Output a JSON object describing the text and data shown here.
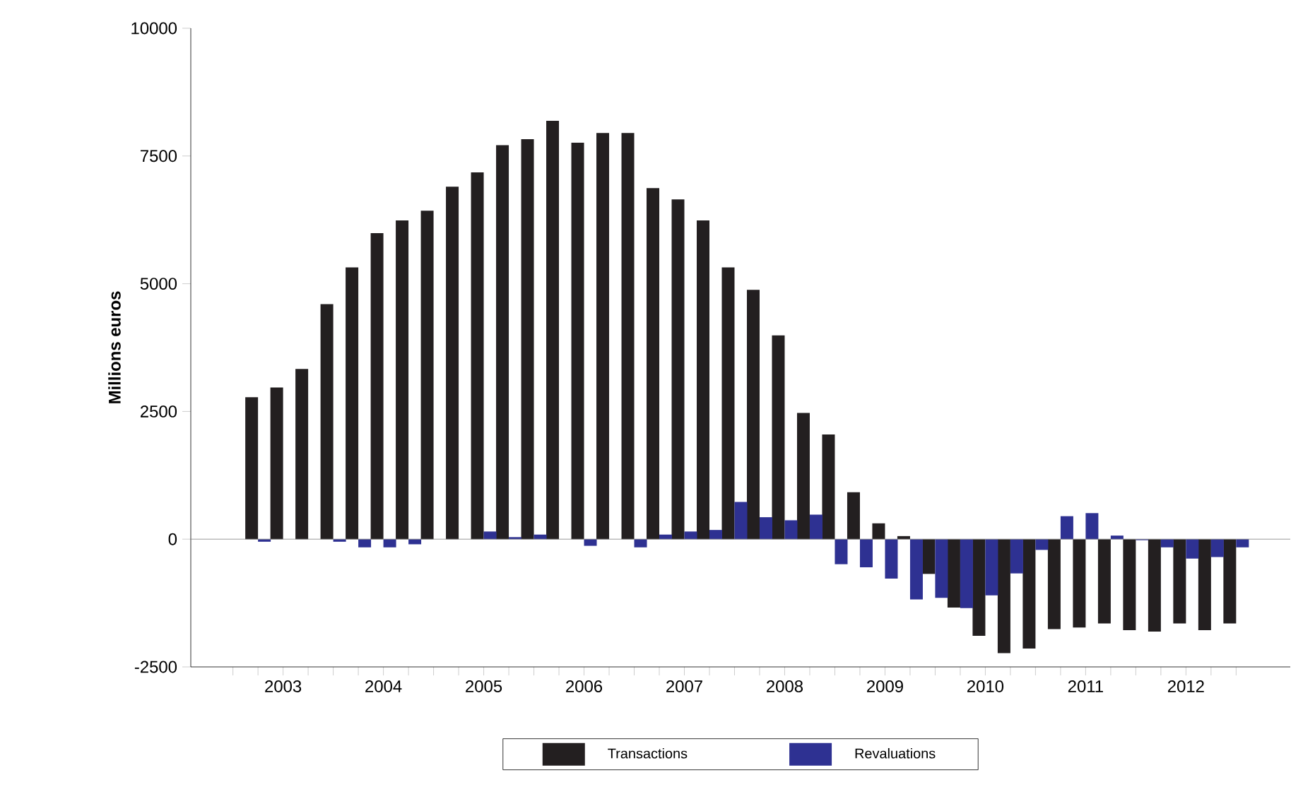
{
  "chart_data": {
    "type": "bar",
    "ylabel": "Millions euros",
    "x": [
      2003.25,
      2003.5,
      2003.75,
      2004,
      2004.25,
      2004.5,
      2004.75,
      2005,
      2005.25,
      2005.5,
      2005.75,
      2006,
      2006.25,
      2006.5,
      2006.75,
      2007,
      2007.25,
      2007.5,
      2007.75,
      2008,
      2008.25,
      2008.5,
      2008.75,
      2009,
      2009.25,
      2009.5,
      2009.75,
      2010,
      2010.25,
      2010.5,
      2010.75,
      2011,
      2011.25,
      2011.5,
      2011.75,
      2012,
      2012.25,
      2012.5,
      2012.75,
      2013
    ],
    "series": [
      {
        "name": "Transactions",
        "color": "#231f20",
        "values": [
          2780,
          2970,
          3330,
          4600,
          5320,
          5990,
          6240,
          6430,
          6900,
          7180,
          7710,
          7830,
          8190,
          7760,
          7950,
          7950,
          6870,
          6650,
          6240,
          5320,
          4880,
          3990,
          2470,
          2050,
          920,
          310,
          60,
          -680,
          -1340,
          -1890,
          -2230,
          -2140,
          -1760,
          -1730,
          -1650,
          -1780,
          -1810,
          -1650,
          -1780,
          -1650
        ]
      },
      {
        "name": "Revaluations",
        "color": "#2e3192",
        "values": [
          -50,
          null,
          null,
          -50,
          -160,
          -160,
          -100,
          null,
          0,
          150,
          40,
          90,
          null,
          -130,
          null,
          -160,
          90,
          150,
          180,
          730,
          430,
          370,
          480,
          -490,
          -550,
          -770,
          -1180,
          -1150,
          -1350,
          -1100,
          -670,
          -210,
          450,
          510,
          70,
          -20,
          -160,
          -380,
          -350,
          -160
        ]
      }
    ],
    "xlim": [
      2002.58,
      2013.54
    ],
    "ylim": [
      -2500,
      10000
    ],
    "xticks": [
      {
        "value": 2003,
        "label": null
      },
      {
        "value": 2003.25,
        "label": null
      },
      {
        "value": 2003.5,
        "label": "2003"
      },
      {
        "value": 2003.75,
        "label": null
      },
      {
        "value": 2004,
        "label": null
      },
      {
        "value": 2004.25,
        "label": null
      },
      {
        "value": 2004.5,
        "label": "2004"
      },
      {
        "value": 2004.75,
        "label": null
      },
      {
        "value": 2005,
        "label": null
      },
      {
        "value": 2005.25,
        "label": null
      },
      {
        "value": 2005.5,
        "label": "2005"
      },
      {
        "value": 2005.75,
        "label": null
      },
      {
        "value": 2006,
        "label": null
      },
      {
        "value": 2006.25,
        "label": null
      },
      {
        "value": 2006.5,
        "label": "2006"
      },
      {
        "value": 2006.75,
        "label": null
      },
      {
        "value": 2007,
        "label": null
      },
      {
        "value": 2007.25,
        "label": null
      },
      {
        "value": 2007.5,
        "label": "2007"
      },
      {
        "value": 2007.75,
        "label": null
      },
      {
        "value": 2008,
        "label": null
      },
      {
        "value": 2008.25,
        "label": null
      },
      {
        "value": 2008.5,
        "label": "2008"
      },
      {
        "value": 2008.75,
        "label": null
      },
      {
        "value": 2009,
        "label": null
      },
      {
        "value": 2009.25,
        "label": null
      },
      {
        "value": 2009.5,
        "label": "2009"
      },
      {
        "value": 2009.75,
        "label": null
      },
      {
        "value": 2010,
        "label": null
      },
      {
        "value": 2010.25,
        "label": null
      },
      {
        "value": 2010.5,
        "label": "2010"
      },
      {
        "value": 2010.75,
        "label": null
      },
      {
        "value": 2011,
        "label": null
      },
      {
        "value": 2011.25,
        "label": null
      },
      {
        "value": 2011.5,
        "label": "2011"
      },
      {
        "value": 2011.75,
        "label": null
      },
      {
        "value": 2012,
        "label": null
      },
      {
        "value": 2012.25,
        "label": null
      },
      {
        "value": 2012.5,
        "label": "2012"
      },
      {
        "value": 2012.75,
        "label": null
      },
      {
        "value": 2013,
        "label": null
      }
    ],
    "yticks": [
      -2500,
      0,
      2500,
      5000,
      7500,
      10000
    ],
    "legend": "bottom"
  }
}
